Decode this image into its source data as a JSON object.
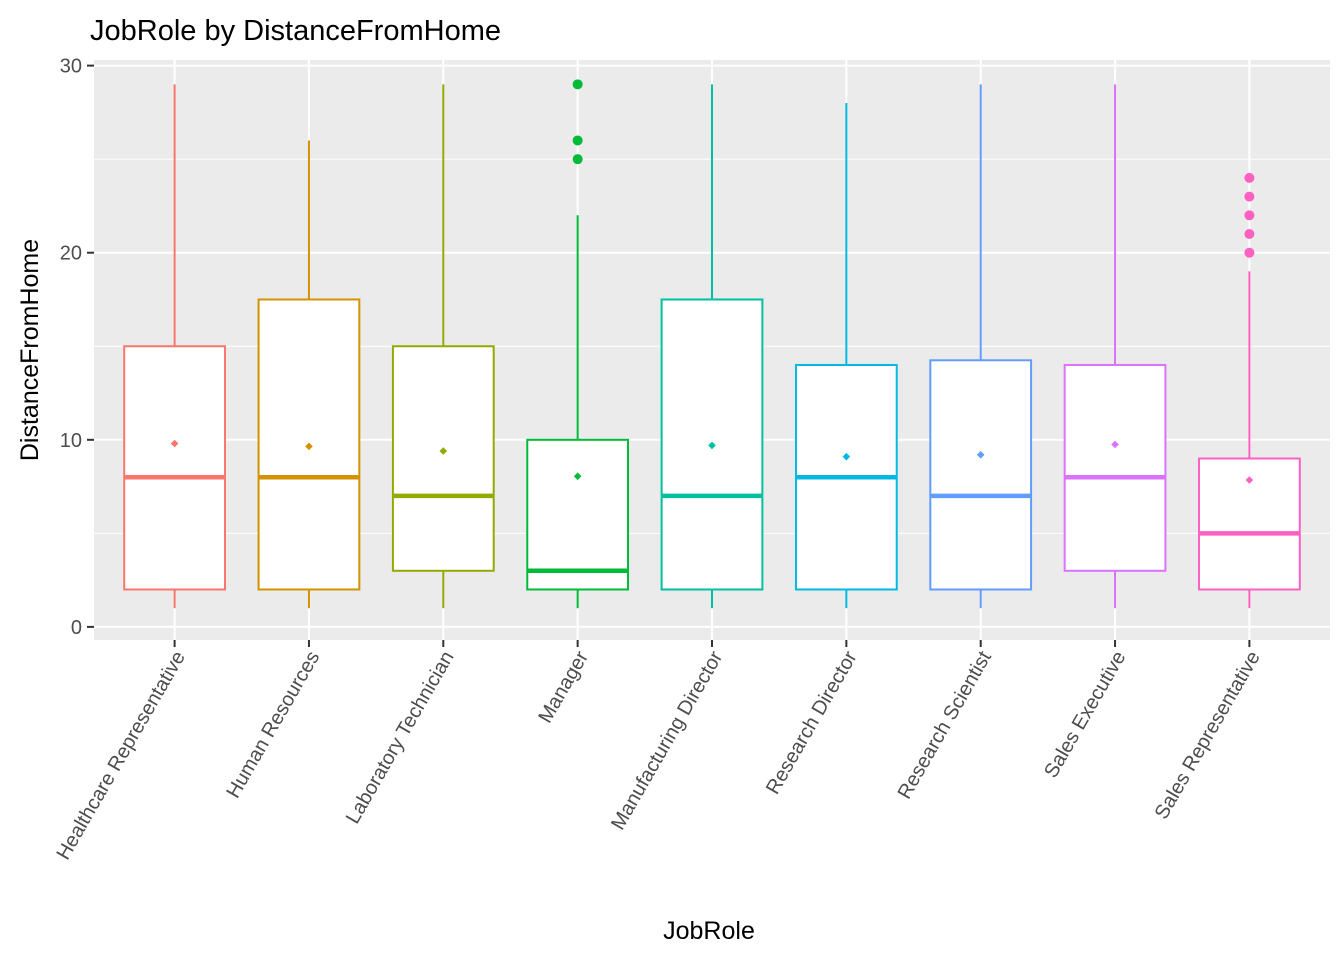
{
  "chart_data": {
    "type": "boxplot",
    "title": "JobRole by DistanceFromHome",
    "xlabel": "JobRole",
    "ylabel": "DistanceFromHome",
    "ylim": [
      -0.7,
      30.3
    ],
    "yticks": [
      0,
      10,
      20,
      30
    ],
    "grid": true,
    "legend": "none",
    "categories": [
      "Healthcare Representative",
      "Human Resources",
      "Laboratory Technician",
      "Manager",
      "Manufacturing Director",
      "Research Director",
      "Research Scientist",
      "Sales Executive",
      "Sales Representative"
    ],
    "boxes": [
      {
        "name": "Healthcare Representative",
        "color": "#F8766D",
        "min": 1,
        "q1": 2,
        "median": 8,
        "q3": 15,
        "max": 29,
        "mean": 9.8,
        "outliers": []
      },
      {
        "name": "Human Resources",
        "color": "#D39200",
        "min": 1,
        "q1": 2,
        "median": 8,
        "q3": 17.5,
        "max": 26,
        "mean": 9.65,
        "outliers": []
      },
      {
        "name": "Laboratory Technician",
        "color": "#93AA00",
        "min": 1,
        "q1": 3,
        "median": 7,
        "q3": 15,
        "max": 29,
        "mean": 9.4,
        "outliers": []
      },
      {
        "name": "Manager",
        "color": "#00BA38",
        "min": 1,
        "q1": 2,
        "median": 3,
        "q3": 10,
        "max": 22,
        "mean": 8.05,
        "outliers": [
          25,
          26,
          29
        ]
      },
      {
        "name": "Manufacturing Director",
        "color": "#00C19F",
        "min": 1,
        "q1": 2,
        "median": 7,
        "q3": 17.5,
        "max": 29,
        "mean": 9.7,
        "outliers": []
      },
      {
        "name": "Research Director",
        "color": "#00B9E3",
        "min": 1,
        "q1": 2,
        "median": 8,
        "q3": 14,
        "max": 28,
        "mean": 9.1,
        "outliers": []
      },
      {
        "name": "Research Scientist",
        "color": "#619CFF",
        "min": 1,
        "q1": 2,
        "median": 7,
        "q3": 14.25,
        "max": 29,
        "mean": 9.2,
        "outliers": []
      },
      {
        "name": "Sales Executive",
        "color": "#DB72FB",
        "min": 1,
        "q1": 3,
        "median": 8,
        "q3": 14,
        "max": 29,
        "mean": 9.75,
        "outliers": []
      },
      {
        "name": "Sales Representative",
        "color": "#FF61C3",
        "min": 1,
        "q1": 2,
        "median": 5,
        "q3": 9,
        "max": 19,
        "mean": 7.85,
        "outliers": [
          20,
          21,
          22,
          23,
          24
        ]
      }
    ]
  }
}
